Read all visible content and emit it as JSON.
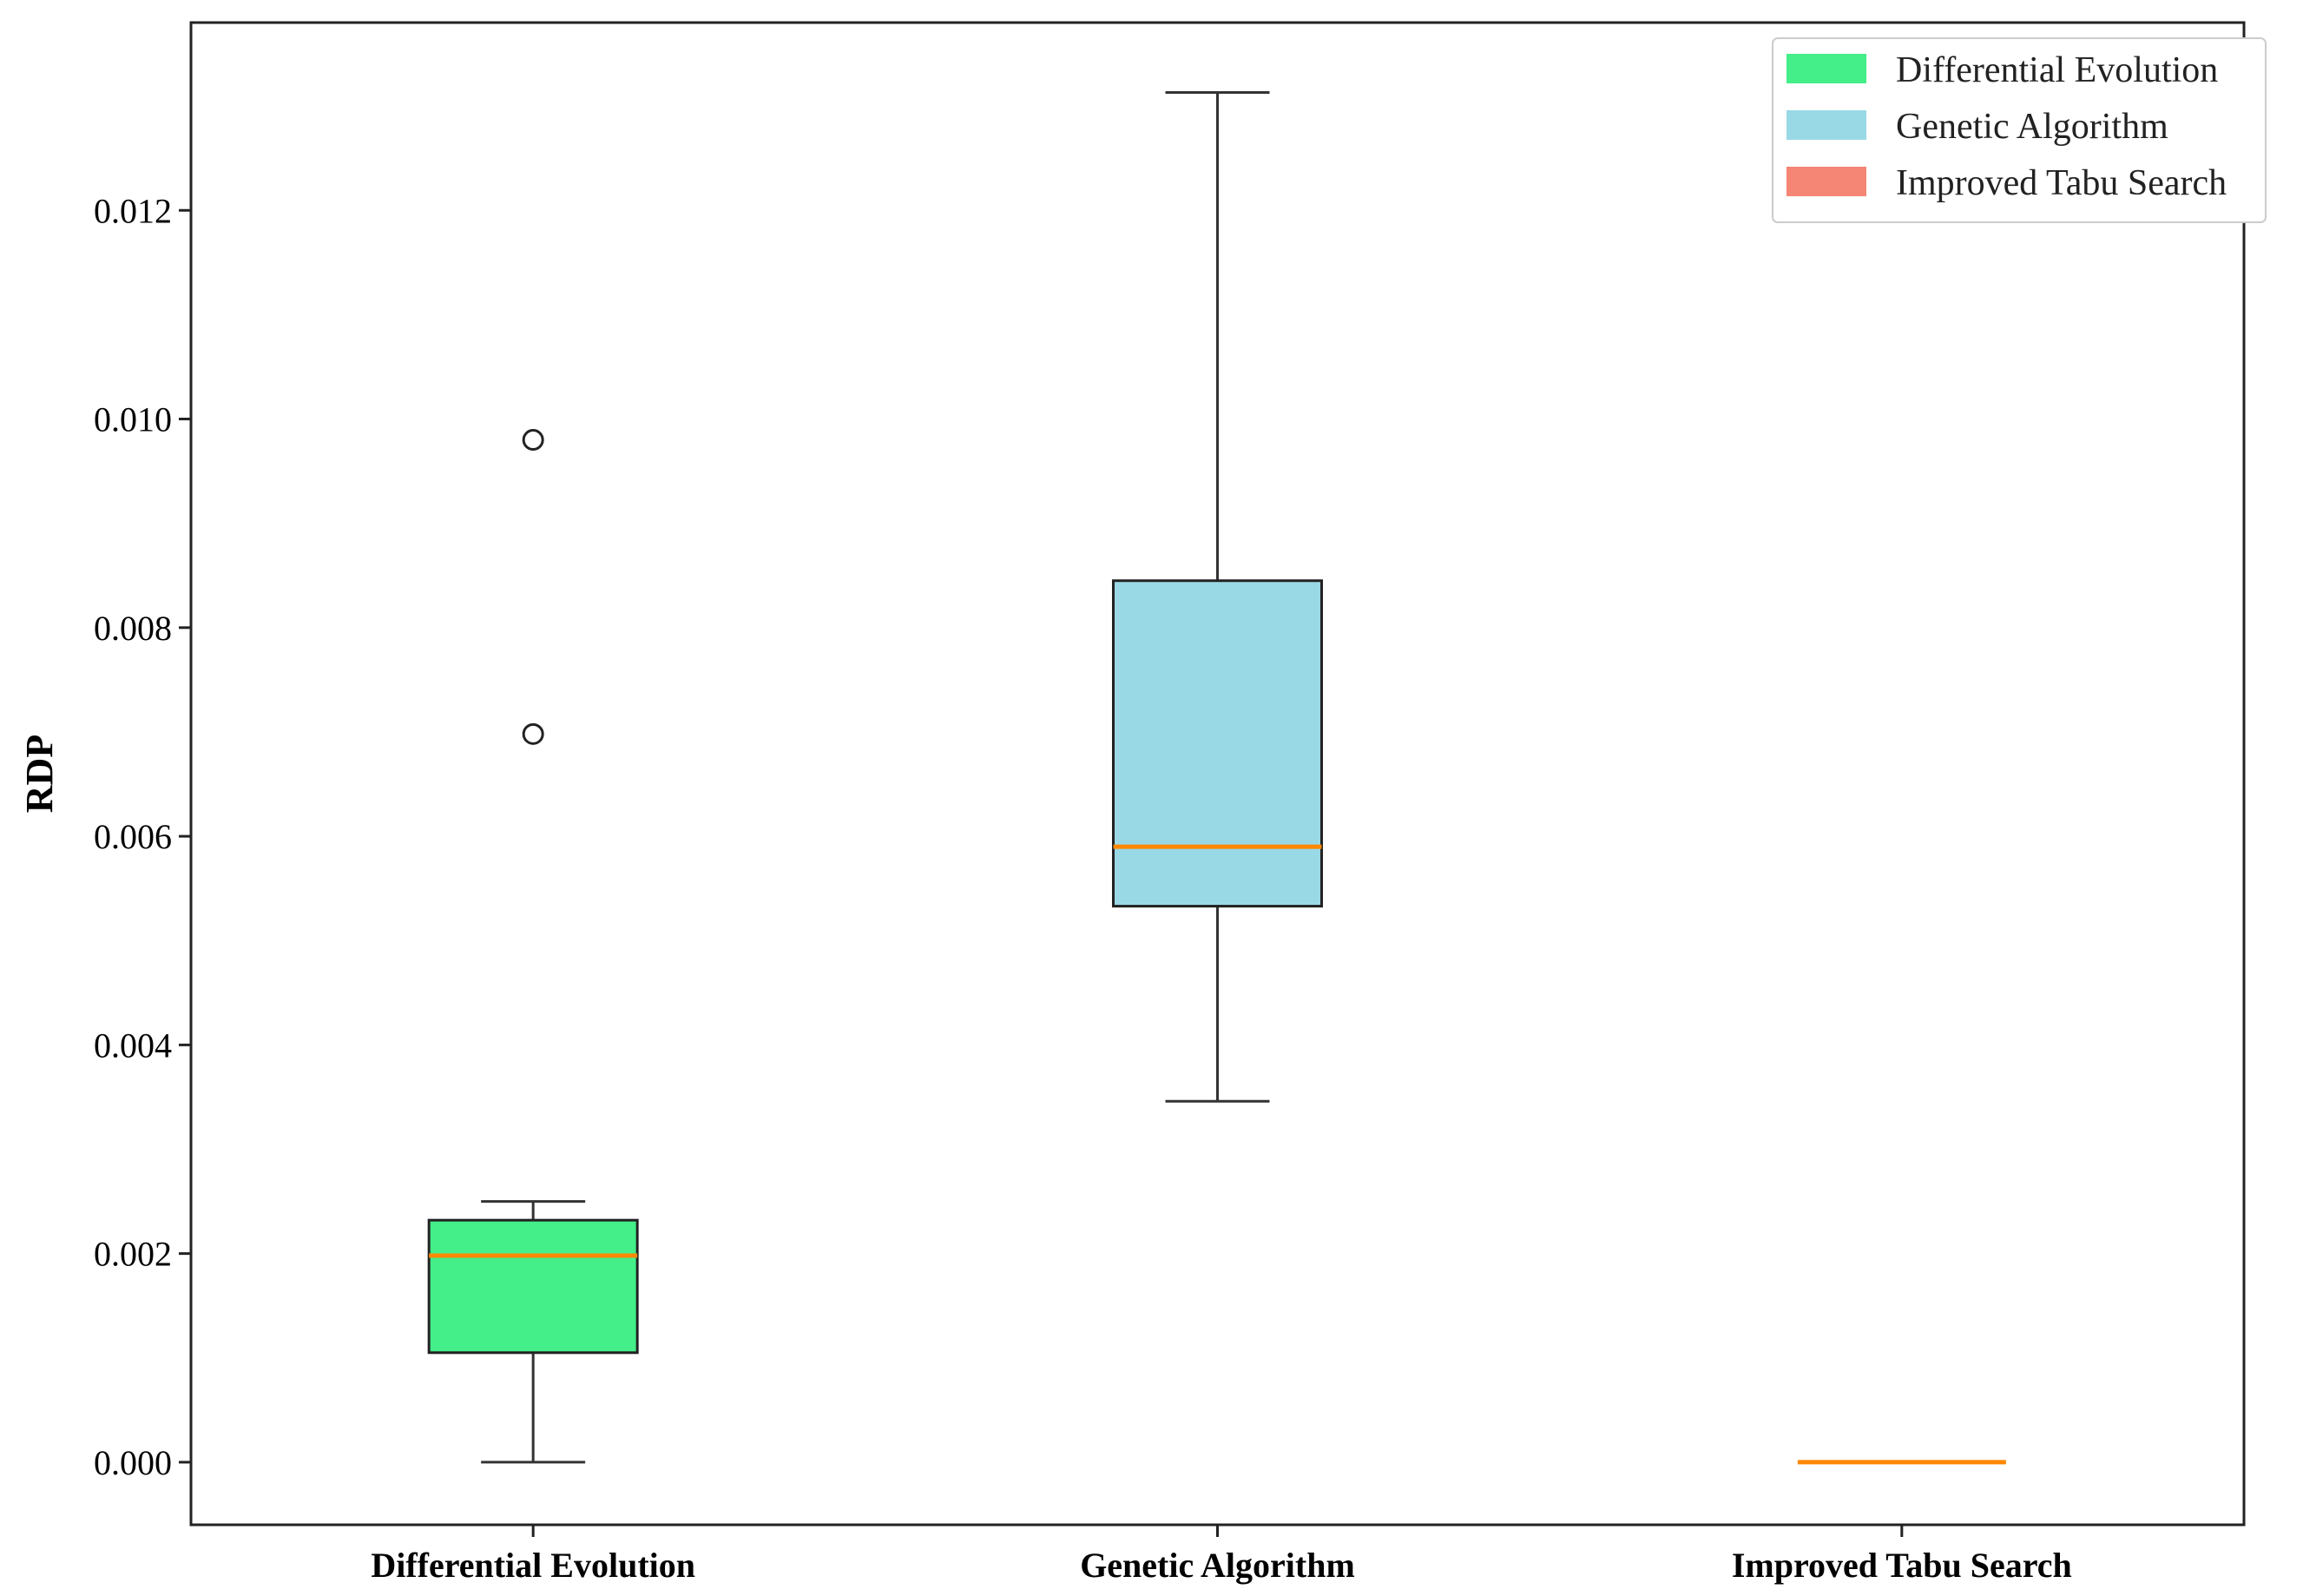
{
  "chart_data": {
    "type": "box",
    "title": "",
    "xlabel": "",
    "ylabel": "RDP",
    "ylim": [
      -0.0006,
      0.0138
    ],
    "yticks": [
      0.0,
      0.002,
      0.004,
      0.006,
      0.008,
      0.01,
      0.012
    ],
    "ytick_labels": [
      "0.000",
      "0.002",
      "0.004",
      "0.006",
      "0.008",
      "0.010",
      "0.012"
    ],
    "categories": [
      "Differential Evolution",
      "Genetic Algorithm",
      "Improved Tabu Search"
    ],
    "series": [
      {
        "name": "Differential Evolution",
        "color": "#44ee88",
        "whisker_low": 0.0,
        "q1": 0.00105,
        "median": 0.00198,
        "q3": 0.00232,
        "whisker_high": 0.0025,
        "outliers": [
          0.0098,
          0.00698
        ]
      },
      {
        "name": "Genetic Algorithm",
        "color": "#99d9e6",
        "whisker_low": 0.00346,
        "q1": 0.00533,
        "median": 0.0059,
        "q3": 0.00845,
        "whisker_high": 0.01313,
        "outliers": []
      },
      {
        "name": "Improved Tabu Search",
        "color": "#f58575",
        "whisker_low": 0.0,
        "q1": 0.0,
        "median": 0.0,
        "q3": 0.0,
        "whisker_high": 0.0,
        "outliers": []
      }
    ],
    "median_color": "#ff8800",
    "grid": false,
    "legend": {
      "position": "top-right",
      "entries": [
        "Differential Evolution",
        "Genetic Algorithm",
        "Improved Tabu Search"
      ]
    }
  }
}
